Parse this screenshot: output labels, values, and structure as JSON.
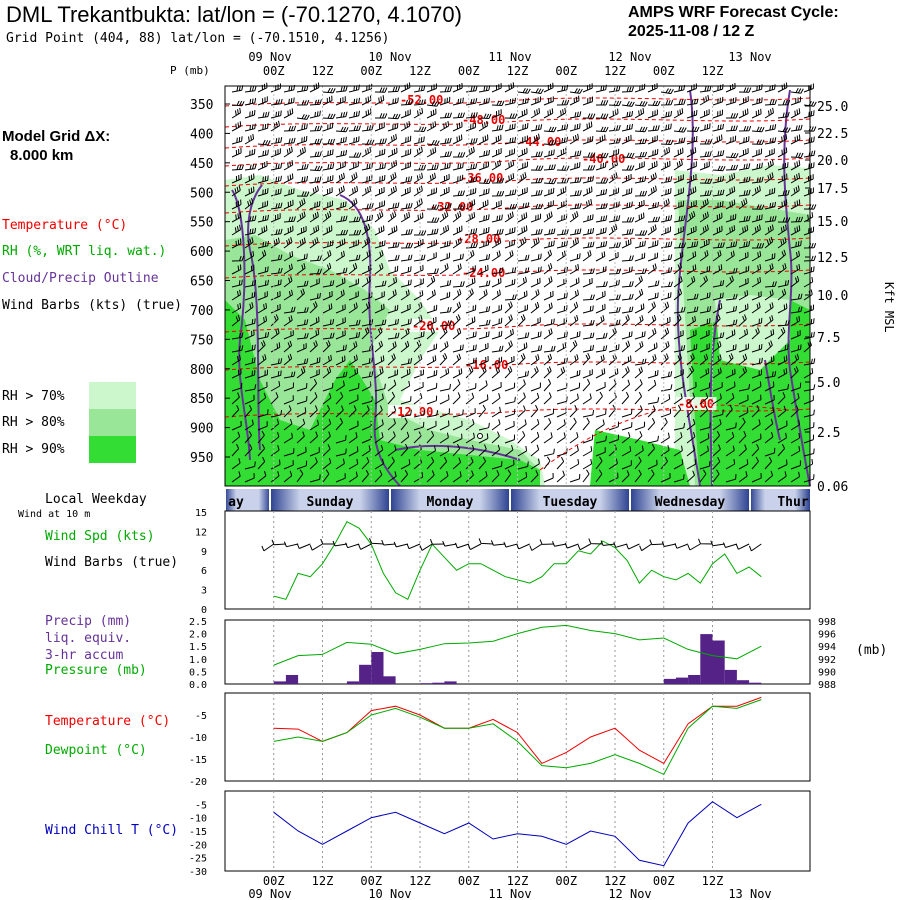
{
  "header": {
    "title": "DML Trekantbukta:  lat/lon = (-70.1270, 4.1070)",
    "grid_point": "Grid Point (404, 88) lat/lon = (-70.1510, 4.1256)",
    "cycle_line1": "AMPS WRF Forecast Cycle:",
    "cycle_line2": "2025-11-08 / 12  Z"
  },
  "legend": {
    "model_grid_label": "Model Grid ΔX:",
    "model_grid_value": "8.000 km",
    "temperature": "Temperature (°C)",
    "rh": "RH (%, WRT liq. wat.)",
    "cloud": "Cloud/Precip Outline",
    "wind": "Wind Barbs (kts) (true)",
    "rh70": "RH > 70%",
    "rh80": "RH > 80%",
    "rh90": "RH > 90%",
    "colors": {
      "rh70": "#ccf7cc",
      "rh80": "#99e699",
      "rh90": "#33dd33",
      "temp": "#ee0000",
      "cloud": "#663399"
    }
  },
  "time_axis": {
    "top_dates": [
      "09 Nov",
      "10 Nov",
      "11 Nov",
      "12 Nov",
      "13 Nov"
    ],
    "hours": [
      "00Z",
      "12Z",
      "00Z",
      "12Z",
      "00Z",
      "12Z",
      "00Z",
      "12Z",
      "00Z",
      "12Z"
    ],
    "weekday_title": "Local Weekday",
    "weekdays": [
      "ay",
      "Sunday",
      "Monday",
      "Tuesday",
      "Wednesday",
      "Thur"
    ]
  },
  "cross_section": {
    "p_label": "P (mb)",
    "pressure_ticks": [
      "350",
      "400",
      "450",
      "500",
      "550",
      "600",
      "650",
      "700",
      "750",
      "800",
      "850",
      "900",
      "950"
    ],
    "height_axis_label": "Kft MSL",
    "height_ticks": [
      "25.0",
      "22.5",
      "20.0",
      "17.5",
      "15.0",
      "12.5",
      "10.0",
      "7.5",
      "5.0",
      "2.5",
      "0.06"
    ],
    "temp_labels": [
      "-52.00",
      "-48.00",
      "-44.00",
      "-40.00",
      "-36.00",
      "-32.00",
      "-28.00",
      "-24.00",
      "-20.00",
      "-16.00",
      "-12.00",
      "-8.00"
    ]
  },
  "wind_panel": {
    "note": "Wind at 10 m",
    "label1": "Wind Spd (kts)",
    "label2": "Wind Barbs (true)",
    "yticks": [
      "15",
      "12",
      "9",
      "6",
      "3",
      "0"
    ]
  },
  "precip_panel": {
    "label1": "Precip (mm)",
    "label2": "liq. equiv.",
    "label3": "3-hr accum",
    "label4": "Pressure (mb)",
    "left_ticks": [
      "2.5",
      "2.0",
      "1.5",
      "1.0",
      "0.5",
      "0.0"
    ],
    "right_ticks": [
      "998",
      "996",
      "994",
      "992",
      "990",
      "988"
    ],
    "right_unit": "(mb)"
  },
  "temp_panel": {
    "label1": "Temperature (°C)",
    "label2": "Dewpoint (°C)",
    "yticks": [
      "-5",
      "-10",
      "-15",
      "-20"
    ]
  },
  "chill_panel": {
    "label": "Wind Chill T (°C)",
    "yticks": [
      "-5",
      "-10",
      "-15",
      "-20",
      "-25",
      "-30"
    ]
  },
  "chart_data": [
    {
      "type": "line",
      "title": "Wind Spd (kts)",
      "x_hours": [
        0,
        3,
        6,
        9,
        12,
        15,
        18,
        21,
        24,
        27,
        30,
        33,
        36,
        39,
        42,
        45,
        48,
        51,
        54,
        57,
        60,
        63,
        66,
        69,
        72,
        75,
        78,
        81,
        84,
        87,
        90,
        93,
        96,
        99,
        102,
        105,
        108,
        111,
        114,
        117,
        120
      ],
      "series": [
        {
          "name": "Wind Spd (kts)",
          "color": "#00aa00",
          "values": [
            2,
            1.5,
            5.5,
            5,
            7,
            10,
            13.5,
            12.5,
            10,
            5.5,
            2.5,
            1.5,
            6,
            10,
            8,
            6,
            7,
            7,
            6,
            5,
            4.5,
            4,
            5,
            7,
            7,
            9,
            8.5,
            10.5,
            9.5,
            7.5,
            4,
            6,
            5,
            4.5,
            5.5,
            4,
            7,
            8.5,
            5.5,
            6.5,
            5
          ]
        }
      ],
      "ylim": [
        0,
        15
      ]
    },
    {
      "type": "bar",
      "title": "Precip (mm)",
      "x_hours": [
        3,
        6,
        21,
        24,
        27,
        30,
        33,
        39,
        42,
        45,
        48,
        96,
        99,
        102,
        105,
        108,
        111,
        114,
        117,
        120
      ],
      "values": [
        0.1,
        0.35,
        0.1,
        0.75,
        1.25,
        0.3,
        0.0,
        0.03,
        0.05,
        0.1,
        0.0,
        0.0,
        0.2,
        0.25,
        0.35,
        1.95,
        1.7,
        0.55,
        0.15,
        0.05
      ],
      "ylim": [
        0,
        2.5
      ]
    },
    {
      "type": "line",
      "title": "Pressure (mb)",
      "x_hours": [
        0,
        6,
        12,
        18,
        24,
        30,
        36,
        42,
        48,
        54,
        60,
        66,
        72,
        78,
        84,
        90,
        96,
        102,
        108,
        114,
        120
      ],
      "series": [
        {
          "name": "Pressure (mb)",
          "color": "#00aa00",
          "values": [
            991,
            992.5,
            992.7,
            994.6,
            994.3,
            992.8,
            993.5,
            994.4,
            994.5,
            994.8,
            996,
            997,
            997.3,
            996.5,
            996,
            995,
            995.3,
            993.5,
            992.5,
            992,
            994
          ]
        }
      ],
      "ylim": [
        988,
        998
      ]
    },
    {
      "type": "line",
      "title": "Temperature / Dewpoint (°C)",
      "x_hours": [
        0,
        6,
        12,
        18,
        24,
        30,
        36,
        42,
        48,
        54,
        60,
        66,
        72,
        78,
        84,
        90,
        96,
        102,
        108,
        114,
        120
      ],
      "series": [
        {
          "name": "Temperature (°C)",
          "color": "#ee0000",
          "values": [
            -8,
            -8.2,
            -11,
            -9,
            -4,
            -3,
            -5,
            -8,
            -8,
            -6,
            -9,
            -16,
            -13.5,
            -10,
            -8,
            -13,
            -16,
            -7,
            -3,
            -3,
            -1
          ]
        },
        {
          "name": "Dewpoint (°C)",
          "color": "#00aa00",
          "values": [
            -11,
            -10,
            -11,
            -9,
            -5,
            -3.5,
            -5.5,
            -8,
            -8,
            -7,
            -11,
            -16.5,
            -17,
            -16,
            -14,
            -16,
            -18.5,
            -8,
            -3,
            -3.5,
            -1.5
          ]
        }
      ],
      "ylim": [
        -20,
        0
      ]
    },
    {
      "type": "line",
      "title": "Wind Chill T (°C)",
      "x_hours": [
        0,
        6,
        12,
        18,
        24,
        30,
        36,
        42,
        48,
        54,
        60,
        66,
        72,
        78,
        84,
        90,
        96,
        102,
        108,
        114,
        120
      ],
      "series": [
        {
          "name": "Wind Chill T (°C)",
          "color": "#0000bb",
          "values": [
            -8,
            -15,
            -20,
            -15,
            -10,
            -8,
            -12,
            -16,
            -12,
            -18,
            -16,
            -17,
            -20,
            -15,
            -17,
            -26,
            -28,
            -12,
            -4,
            -10,
            -5
          ]
        }
      ],
      "ylim": [
        -30,
        0
      ]
    }
  ]
}
